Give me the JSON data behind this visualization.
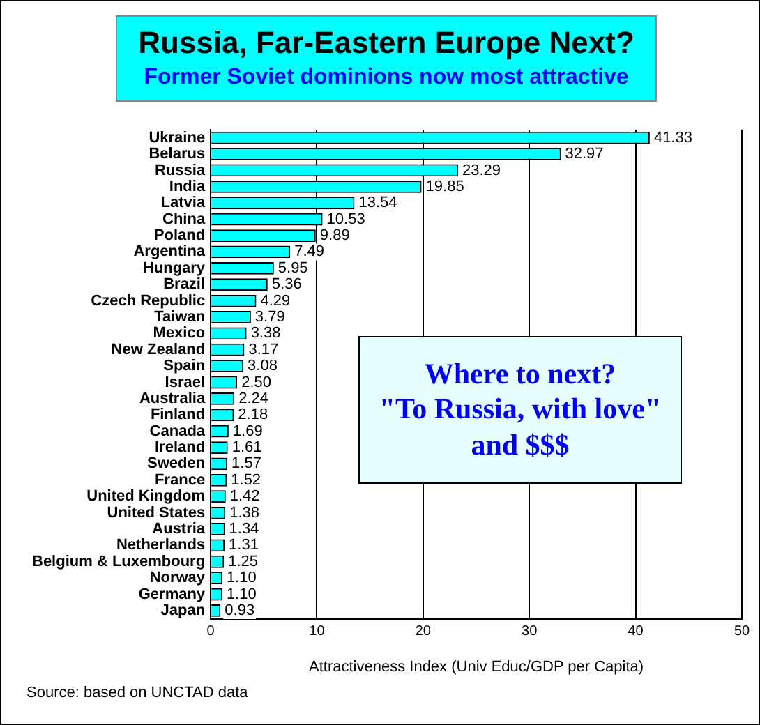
{
  "chart_data": {
    "type": "bar",
    "orientation": "horizontal",
    "title": "Russia, Far-Eastern Europe Next?",
    "subtitle": "Former Soviet dominions now most attractive",
    "xlabel": "Attractiveness Index (Univ Educ/GDP per Capita)",
    "categories": [
      "Ukraine",
      "Belarus",
      "Russia",
      "India",
      "Latvia",
      "China",
      "Poland",
      "Argentina",
      "Hungary",
      "Brazil",
      "Czech Republic",
      "Taiwan",
      "Mexico",
      "New Zealand",
      "Spain",
      "Israel",
      "Australia",
      "Finland",
      "Canada",
      "Ireland",
      "Sweden",
      "France",
      "United Kingdom",
      "United States",
      "Austria",
      "Netherlands",
      "Belgium & Luxembourg",
      "Norway",
      "Germany",
      "Japan"
    ],
    "values": [
      41.33,
      32.97,
      23.29,
      19.85,
      13.54,
      10.53,
      9.89,
      7.49,
      5.95,
      5.36,
      4.29,
      3.79,
      3.38,
      3.17,
      3.08,
      2.5,
      2.24,
      2.18,
      1.69,
      1.61,
      1.57,
      1.52,
      1.42,
      1.38,
      1.34,
      1.31,
      1.25,
      1.1,
      1.1,
      0.93
    ],
    "value_labels": [
      "41.33",
      "32.97",
      "23.29",
      "19.85",
      "13.54",
      "10.53",
      "9.89",
      "7.49",
      "5.95",
      "5.36",
      "4.29",
      "3.79",
      "3.38",
      "3.17",
      "3.08",
      "2.50",
      "2.24",
      "2.18",
      "1.69",
      "1.61",
      "1.57",
      "1.52",
      "1.42",
      "1.38",
      "1.34",
      "1.31",
      "1.25",
      "1.10",
      "1.10",
      "0.93"
    ],
    "color": "#00ffff",
    "xlim": [
      0,
      50
    ],
    "xticks": [
      0,
      10,
      20,
      30,
      40,
      50
    ],
    "grid": "x",
    "legend": false,
    "annotations": [
      "Where to next?\n\"To Russia, with love\" and $$$",
      "Source: based on UNCTAD data"
    ]
  }
}
